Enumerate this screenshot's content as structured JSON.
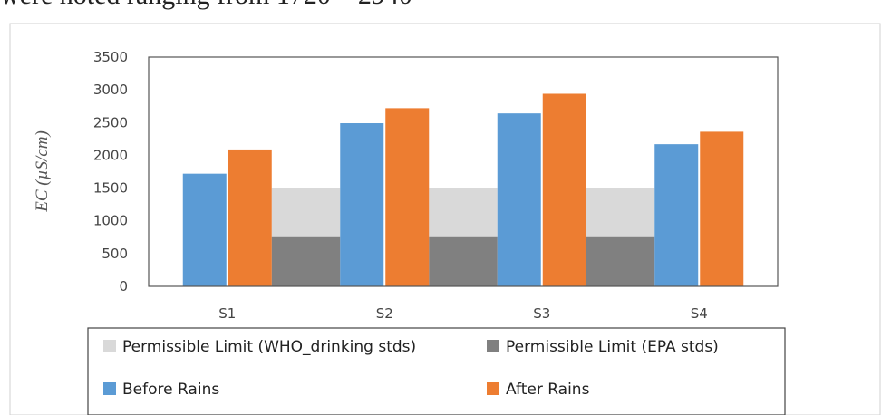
{
  "page_text": "were noted ranging from 1720 – 2940",
  "chart_data": {
    "type": "bar",
    "categories": [
      "S1",
      "S2",
      "S3",
      "S4"
    ],
    "series": [
      {
        "name": "Permissible Limit (WHO_drinking stds)",
        "kind": "band",
        "value": 1500,
        "color": "#d9d9d9"
      },
      {
        "name": "Permissible Limit (EPA stds)",
        "kind": "band",
        "value": 750,
        "color": "#808080"
      },
      {
        "name": "Before Rains",
        "kind": "bar",
        "values": [
          1720,
          2490,
          2640,
          2170
        ],
        "color": "#5b9bd5"
      },
      {
        "name": "After Rains",
        "kind": "bar",
        "values": [
          2090,
          2720,
          2940,
          2360
        ],
        "color": "#ed7d31"
      }
    ],
    "ylabel": "EC  (µS/cm)",
    "ylim": [
      0,
      3500
    ],
    "yticks": [
      "0",
      "500",
      "1000",
      "1500",
      "2000",
      "2500",
      "3000",
      "3500"
    ],
    "grid": false,
    "legend_position": "bottom"
  }
}
